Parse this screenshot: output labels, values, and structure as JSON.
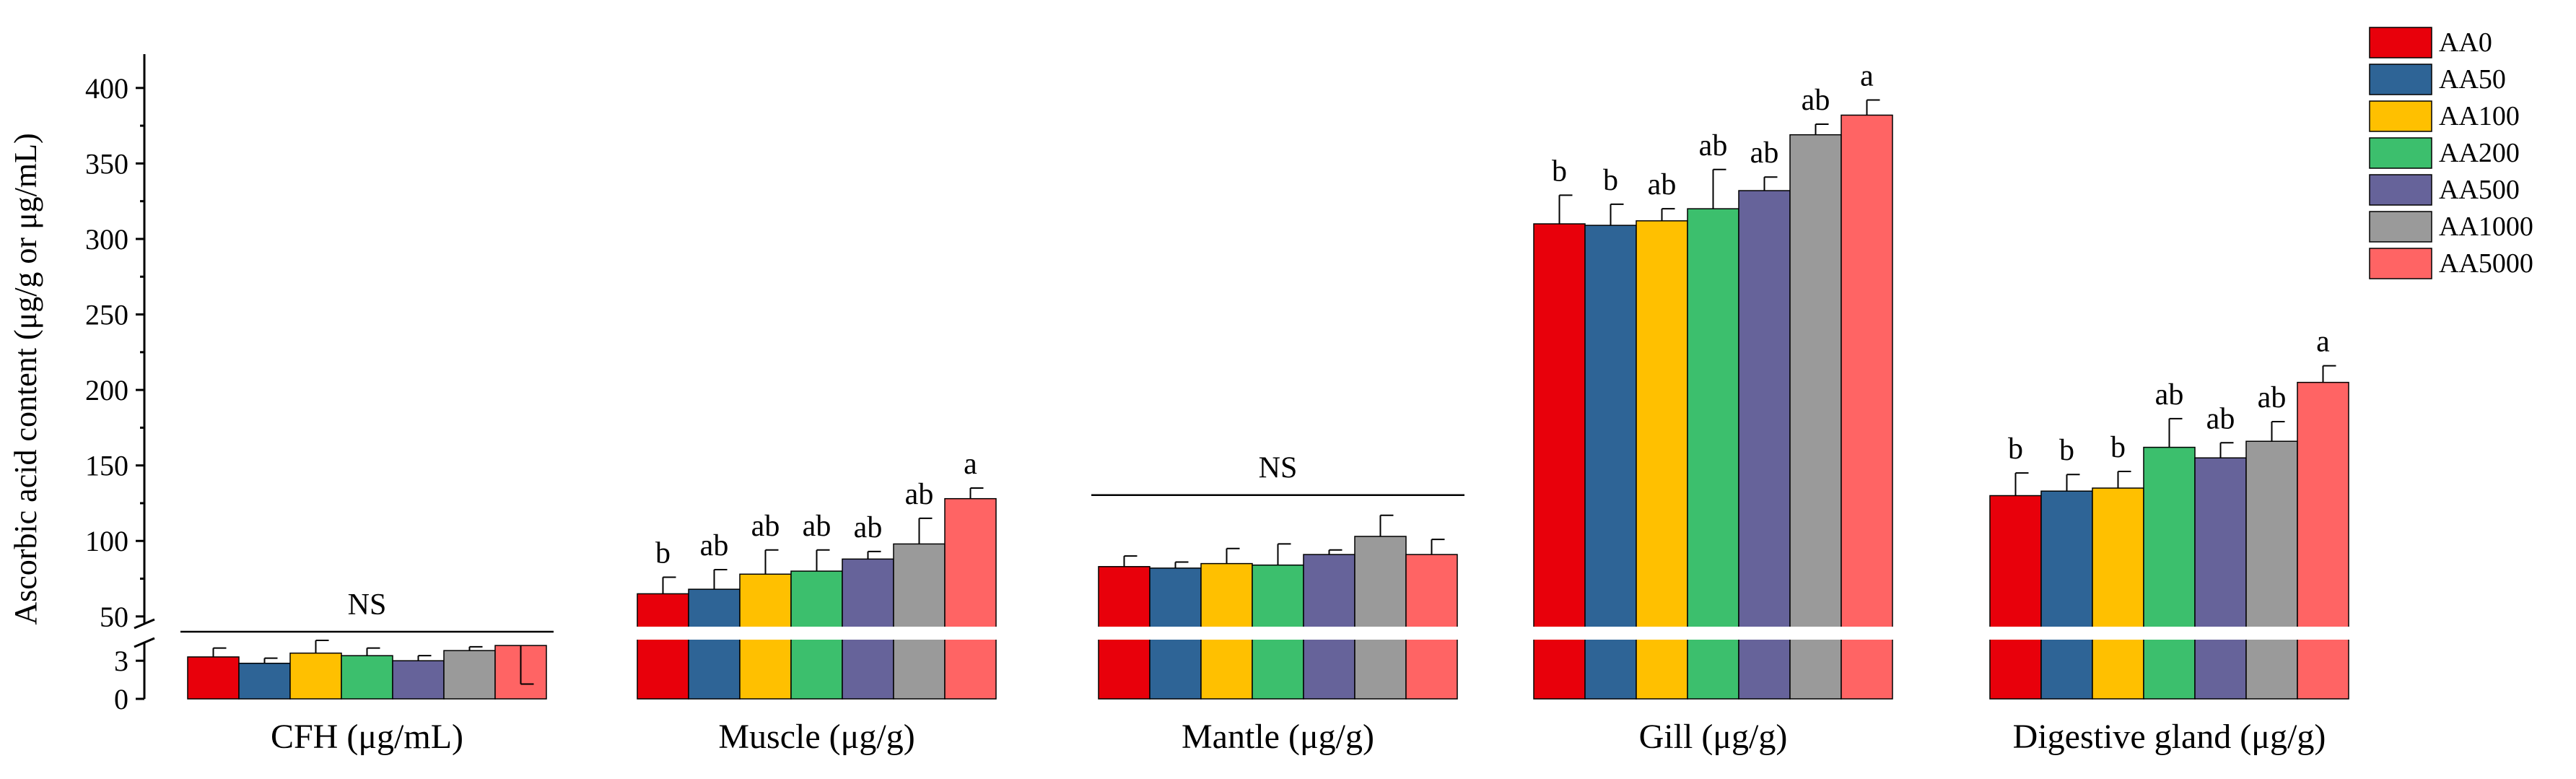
{
  "chart_data": {
    "type": "bar",
    "ylabel": "Ascorbic acid content (μg/g or μg/mL)",
    "xlabel": "",
    "categories": [
      "CFH  (μg/mL)",
      "Muscle (μg/g)",
      "Mantle (μg/g)",
      "Gill (μg/g)",
      "Digestive gland (μg/g)"
    ],
    "y_axis_broken": true,
    "y_lower_segment": {
      "range": [
        0,
        5
      ],
      "ticks": [
        0,
        3
      ]
    },
    "y_upper_segment": {
      "range": [
        48,
        420
      ],
      "ticks": [
        50,
        100,
        150,
        200,
        250,
        300,
        350,
        400
      ]
    },
    "series": [
      {
        "name": "AA0",
        "color": "#E8000B",
        "values": [
          3.3,
          65,
          83,
          310,
          130
        ],
        "errors": [
          0.7,
          11,
          7,
          19,
          15
        ]
      },
      {
        "name": "AA50",
        "color": "#2E6496",
        "values": [
          2.8,
          68,
          82,
          309,
          133
        ],
        "errors": [
          0.4,
          13,
          4,
          14,
          11
        ]
      },
      {
        "name": "AA100",
        "color": "#FFC000",
        "values": [
          3.6,
          78,
          85,
          312,
          135
        ],
        "errors": [
          1.0,
          16,
          10,
          8,
          11
        ]
      },
      {
        "name": "AA200",
        "color": "#3CBF6D",
        "values": [
          3.4,
          80,
          84,
          320,
          162
        ],
        "errors": [
          0.6,
          14,
          14,
          26,
          19
        ]
      },
      {
        "name": "AA500",
        "color": "#66639A",
        "values": [
          3.0,
          88,
          91,
          332,
          155
        ],
        "errors": [
          0.4,
          5,
          3,
          9,
          10
        ]
      },
      {
        "name": "AA1000",
        "color": "#9A9A9A",
        "values": [
          3.8,
          98,
          103,
          369,
          166
        ],
        "errors": [
          0.3,
          17,
          14,
          7,
          13
        ]
      },
      {
        "name": "AA5000",
        "color": "#FF6464",
        "values": [
          4.2,
          128,
          91,
          382,
          205
        ],
        "errors": [
          1.0,
          7,
          10,
          10,
          11
        ]
      }
    ],
    "significance": [
      {
        "group": "CFH  (μg/mL)",
        "text": "NS"
      },
      {
        "group": "Muscle (μg/g)",
        "letters": [
          "b",
          "ab",
          "ab",
          "ab",
          "ab",
          "ab",
          "a"
        ]
      },
      {
        "group": "Mantle (μg/g)",
        "text": "NS"
      },
      {
        "group": "Gill (μg/g)",
        "letters": [
          "b",
          "b",
          "ab",
          "ab",
          "ab",
          "ab",
          "a"
        ]
      },
      {
        "group": "Digestive gland (μg/g)",
        "letters": [
          "b",
          "b",
          "b",
          "ab",
          "ab",
          "ab",
          "a"
        ]
      }
    ],
    "legend": {
      "position": "top-right",
      "entries": [
        "AA0",
        "AA50",
        "AA100",
        "AA200",
        "AA500",
        "AA1000",
        "AA5000"
      ]
    }
  }
}
